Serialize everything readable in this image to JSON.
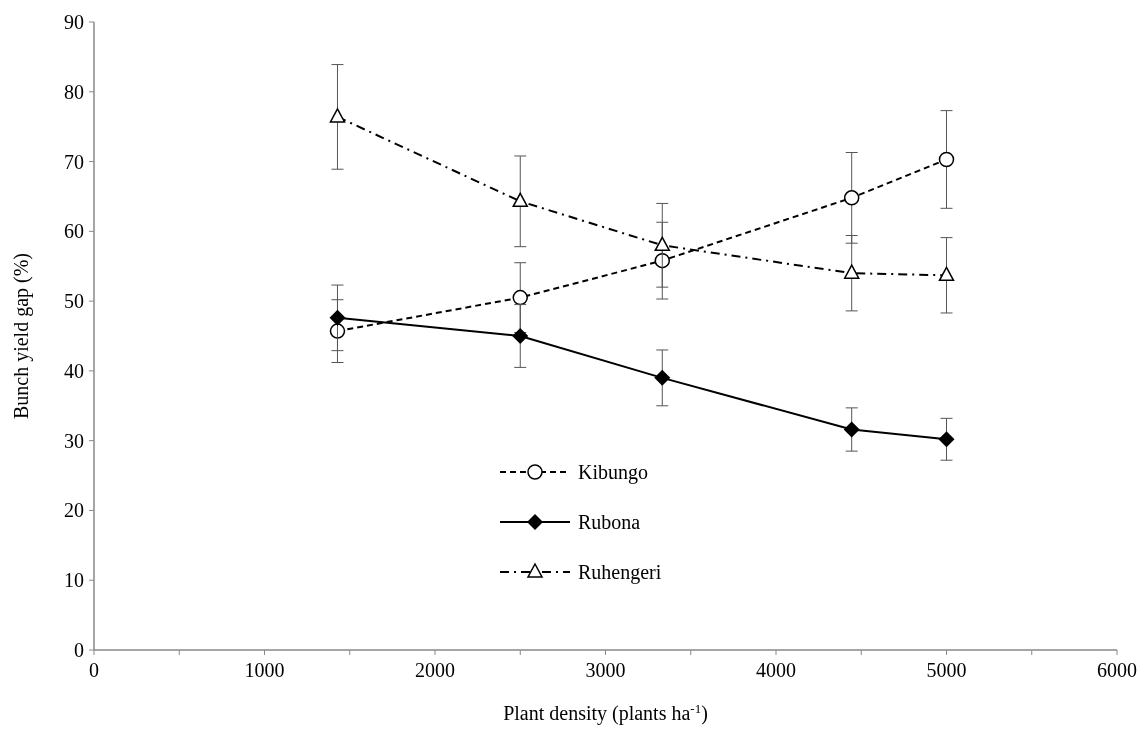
{
  "chart_data": {
    "type": "line",
    "xlabel": "Plant density (plants ha$^{-1}$)",
    "ylabel": "Bunch yield gap (%)",
    "x": [
      1428,
      2500,
      3333,
      4444,
      5000
    ],
    "xlim": [
      0,
      6000
    ],
    "xticks": [
      0,
      {
        "value": 500,
        "label": null
      },
      1000,
      {
        "value": 1500,
        "label": null
      },
      2000,
      {
        "value": 2500,
        "label": null
      },
      3000,
      {
        "value": 3500,
        "label": null
      },
      4000,
      {
        "value": 4500,
        "label": null
      },
      5000,
      {
        "value": 5500,
        "label": null
      },
      6000
    ],
    "ylim": [
      0,
      90
    ],
    "yticks": [
      0,
      10,
      20,
      30,
      40,
      50,
      60,
      70,
      80,
      90
    ],
    "grid": false,
    "legend": "bottom",
    "series": [
      {
        "name": "Kibungo",
        "color": "#000000",
        "marker": "circle",
        "line_style": "dashed",
        "values": [
          45.7,
          50.5,
          55.8,
          64.8,
          70.3
        ],
        "errors": [
          4.5,
          5,
          5.5,
          6.5,
          7
        ]
      },
      {
        "name": "Rubona",
        "color": "#000000",
        "marker": "diamond",
        "line_style": "solid",
        "values": [
          47.6,
          45,
          39,
          31.6,
          30.2
        ],
        "errors": [
          4.7,
          4.5,
          4,
          3.1,
          3
        ]
      },
      {
        "name": "Ruhengeri",
        "color": "#000000",
        "marker": "triangle",
        "line_style": "dashdot",
        "values": [
          76.4,
          64.3,
          58,
          54,
          53.7
        ],
        "errors": [
          7.5,
          6.5,
          6,
          5.4,
          5.4
        ]
      }
    ]
  }
}
